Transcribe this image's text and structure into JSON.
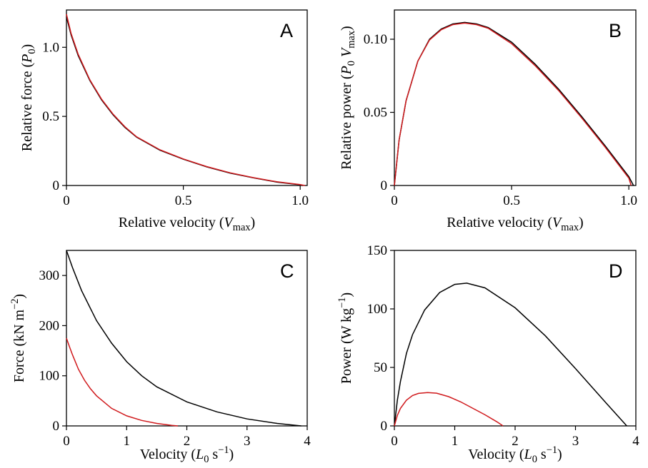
{
  "colors": {
    "black_series": "#000000",
    "red_series": "#d0191c"
  },
  "chart_data": [
    {
      "id": "A",
      "type": "line",
      "panel_label": "A",
      "ylabel_parts": [
        [
          "Relative force (",
          "normal"
        ],
        [
          "P",
          "italic"
        ],
        [
          "0",
          "sub"
        ],
        [
          ")",
          "normal"
        ]
      ],
      "xlabel_parts": [
        [
          "Relative velocity (",
          "normal"
        ],
        [
          "V",
          "italic"
        ],
        [
          "max",
          "sub"
        ],
        [
          ")",
          "normal"
        ]
      ],
      "xlim": [
        0,
        1.03
      ],
      "ylim": [
        0,
        1.27
      ],
      "xticks": [
        0,
        0.5,
        1.0
      ],
      "xtick_labels": [
        "0",
        "0.5",
        "1.0"
      ],
      "yticks": [
        0,
        0.5,
        1.0
      ],
      "ytick_labels": [
        "0",
        "0.5",
        "1.0"
      ],
      "series": [
        {
          "color": "#000000",
          "x": [
            0,
            0.02,
            0.05,
            0.1,
            0.15,
            0.2,
            0.25,
            0.3,
            0.4,
            0.5,
            0.6,
            0.7,
            0.8,
            0.9,
            1.0,
            1.01
          ],
          "y": [
            1.22,
            1.09,
            0.94,
            0.76,
            0.62,
            0.51,
            0.42,
            0.35,
            0.255,
            0.19,
            0.135,
            0.09,
            0.055,
            0.025,
            0.005,
            0
          ]
        },
        {
          "color": "#d0191c",
          "x": [
            0,
            0.02,
            0.05,
            0.1,
            0.15,
            0.2,
            0.25,
            0.3,
            0.4,
            0.5,
            0.6,
            0.7,
            0.8,
            0.9,
            1.0,
            1.02
          ],
          "y": [
            1.24,
            1.1,
            0.95,
            0.765,
            0.625,
            0.515,
            0.425,
            0.352,
            0.258,
            0.192,
            0.137,
            0.092,
            0.057,
            0.027,
            0.006,
            0
          ]
        }
      ]
    },
    {
      "id": "B",
      "type": "line",
      "panel_label": "B",
      "ylabel_parts": [
        [
          "Relative power (",
          "normal"
        ],
        [
          "P",
          "italic"
        ],
        [
          "0",
          "sub"
        ],
        [
          " ",
          "normal"
        ],
        [
          "V",
          "italic"
        ],
        [
          "max",
          "sub"
        ],
        [
          ")",
          "normal"
        ]
      ],
      "xlabel_parts": [
        [
          "Relative velocity (",
          "normal"
        ],
        [
          "V",
          "italic"
        ],
        [
          "max",
          "sub"
        ],
        [
          ")",
          "normal"
        ]
      ],
      "xlim": [
        0,
        1.03
      ],
      "ylim": [
        0,
        0.12
      ],
      "xticks": [
        0,
        0.5,
        1.0
      ],
      "xtick_labels": [
        "0",
        "0.5",
        "1.0"
      ],
      "yticks": [
        0,
        0.05,
        0.1
      ],
      "ytick_labels": [
        "0",
        "0.05",
        "0.10"
      ],
      "series": [
        {
          "color": "#000000",
          "x": [
            0,
            0.02,
            0.05,
            0.1,
            0.15,
            0.2,
            0.25,
            0.3,
            0.35,
            0.4,
            0.5,
            0.6,
            0.7,
            0.8,
            0.9,
            1.0,
            1.02
          ],
          "y": [
            0,
            0.031,
            0.058,
            0.085,
            0.1,
            0.107,
            0.1105,
            0.1115,
            0.1105,
            0.108,
            0.098,
            0.083,
            0.066,
            0.047,
            0.027,
            0.006,
            0
          ]
        },
        {
          "color": "#d0191c",
          "x": [
            0,
            0.02,
            0.05,
            0.1,
            0.15,
            0.2,
            0.25,
            0.3,
            0.35,
            0.4,
            0.5,
            0.6,
            0.7,
            0.8,
            0.9,
            1.0,
            1.01
          ],
          "y": [
            0,
            0.031,
            0.058,
            0.085,
            0.0995,
            0.1065,
            0.11,
            0.111,
            0.11,
            0.1075,
            0.097,
            0.082,
            0.065,
            0.046,
            0.026,
            0.005,
            0
          ]
        }
      ]
    },
    {
      "id": "C",
      "type": "line",
      "panel_label": "C",
      "ylabel_parts": [
        [
          "Force (kN m",
          "normal"
        ],
        [
          "−2",
          "sup"
        ],
        [
          ")",
          "normal"
        ]
      ],
      "xlabel_parts": [
        [
          "Velocity (",
          "normal"
        ],
        [
          "L",
          "italic"
        ],
        [
          "0",
          "sub"
        ],
        [
          " s",
          "normal"
        ],
        [
          "−1",
          "sup"
        ],
        [
          ")",
          "normal"
        ]
      ],
      "xlim": [
        0,
        4
      ],
      "ylim": [
        0,
        350
      ],
      "xticks": [
        0,
        1,
        2,
        3,
        4
      ],
      "xtick_labels": [
        "0",
        "1",
        "2",
        "3",
        "4"
      ],
      "yticks": [
        0,
        100,
        200,
        300
      ],
      "ytick_labels": [
        "0",
        "100",
        "200",
        "300"
      ],
      "series": [
        {
          "color": "#000000",
          "x": [
            0,
            0.1,
            0.25,
            0.5,
            0.75,
            1.0,
            1.25,
            1.5,
            2.0,
            2.5,
            3.0,
            3.5,
            3.9
          ],
          "y": [
            350,
            316,
            270,
            210,
            165,
            128,
            100,
            78,
            48,
            28,
            14,
            5,
            0
          ]
        },
        {
          "color": "#d0191c",
          "x": [
            0,
            0.05,
            0.1,
            0.2,
            0.3,
            0.4,
            0.5,
            0.75,
            1.0,
            1.25,
            1.5,
            1.75,
            1.85
          ],
          "y": [
            175,
            158,
            142,
            113,
            91,
            74,
            60,
            35,
            20,
            11,
            5,
            1,
            0
          ]
        }
      ]
    },
    {
      "id": "D",
      "type": "line",
      "panel_label": "D",
      "ylabel_parts": [
        [
          "Power (W kg",
          "normal"
        ],
        [
          "−1",
          "sup"
        ],
        [
          ")",
          "normal"
        ]
      ],
      "xlabel_parts": [
        [
          "Velocity (",
          "normal"
        ],
        [
          "L",
          "italic"
        ],
        [
          "0",
          "sub"
        ],
        [
          " s",
          "normal"
        ],
        [
          "−1",
          "sup"
        ],
        [
          ")",
          "normal"
        ]
      ],
      "xlim": [
        0,
        4
      ],
      "ylim": [
        0,
        150
      ],
      "xticks": [
        0,
        1,
        2,
        3,
        4
      ],
      "xtick_labels": [
        "0",
        "1",
        "2",
        "3",
        "4"
      ],
      "yticks": [
        0,
        50,
        100,
        150
      ],
      "ytick_labels": [
        "0",
        "50",
        "100",
        "150"
      ],
      "series": [
        {
          "color": "#000000",
          "x": [
            0,
            0.05,
            0.1,
            0.2,
            0.3,
            0.5,
            0.75,
            1.0,
            1.2,
            1.5,
            2.0,
            2.5,
            3.0,
            3.5,
            3.85
          ],
          "y": [
            0,
            22,
            38,
            62,
            78,
            99,
            114,
            121,
            122,
            118,
            101,
            77,
            49,
            20,
            0
          ]
        },
        {
          "color": "#d0191c",
          "x": [
            0,
            0.05,
            0.1,
            0.2,
            0.3,
            0.4,
            0.55,
            0.7,
            0.9,
            1.1,
            1.3,
            1.5,
            1.7,
            1.8
          ],
          "y": [
            0,
            9,
            15,
            22,
            26,
            27.8,
            28.5,
            28,
            25,
            20.5,
            15,
            9.5,
            3.5,
            0
          ]
        }
      ]
    }
  ]
}
